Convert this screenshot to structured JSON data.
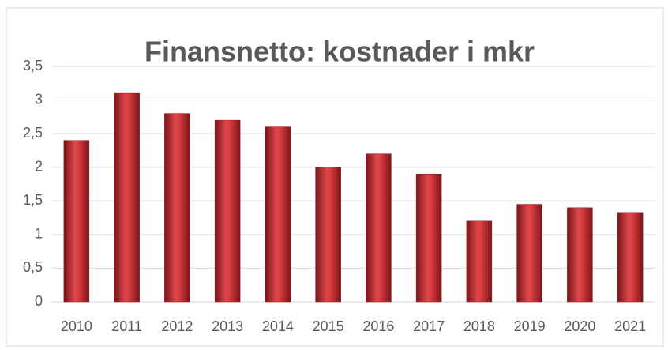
{
  "chart_data": {
    "type": "bar",
    "title": "Finansnetto: kostnader i mkr",
    "categories": [
      "2010",
      "2011",
      "2012",
      "2013",
      "2014",
      "2015",
      "2016",
      "2017",
      "2018",
      "2019",
      "2020",
      "2021"
    ],
    "values": [
      2.4,
      3.1,
      2.8,
      2.7,
      2.6,
      2.0,
      2.2,
      1.9,
      1.2,
      1.45,
      1.4,
      1.33
    ],
    "color": "#c0282d",
    "ylim": [
      0,
      3.5
    ],
    "yticks": [
      0,
      {
        "value": 0.5,
        "label": "0,5"
      },
      1,
      {
        "value": 1.5,
        "label": "1,5"
      },
      2,
      {
        "value": 2.5,
        "label": "2,5"
      },
      3,
      {
        "value": 3.5,
        "label": "3,5"
      }
    ],
    "grid": true
  }
}
